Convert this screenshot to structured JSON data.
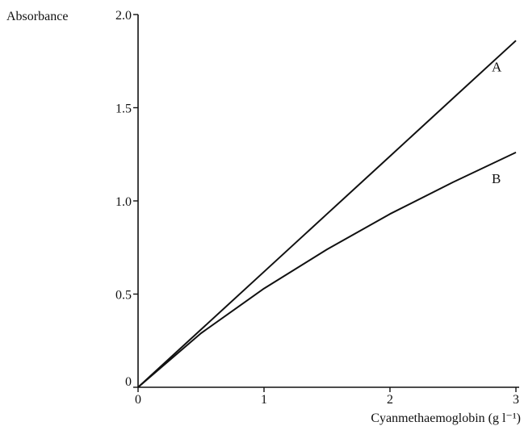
{
  "chart_data": {
    "type": "line",
    "title": "",
    "xlabel": "Cyanmethaemoglobin (g l⁻¹)",
    "ylabel": "Absorbance",
    "xlim": [
      0,
      3
    ],
    "ylim": [
      0,
      2.0
    ],
    "x_ticks": [
      {
        "value": 0,
        "label": "0"
      },
      {
        "value": 1,
        "label": "1"
      },
      {
        "value": 2,
        "label": "2"
      },
      {
        "value": 3,
        "label": "3"
      }
    ],
    "y_ticks": [
      {
        "value": 0,
        "label": "0"
      },
      {
        "value": 0.5,
        "label": "0.5"
      },
      {
        "value": 1.0,
        "label": "1.0"
      },
      {
        "value": 1.5,
        "label": "1.5"
      },
      {
        "value": 2.0,
        "label": "2.0"
      }
    ],
    "grid": false,
    "line_color": "#111111",
    "series": [
      {
        "name": "A",
        "x": [
          0,
          0.5,
          1,
          1.5,
          2,
          2.5,
          3
        ],
        "y": [
          0,
          0.31,
          0.62,
          0.93,
          1.24,
          1.55,
          1.86
        ]
      },
      {
        "name": "B",
        "x": [
          0,
          0.5,
          1,
          1.5,
          2,
          2.5,
          3
        ],
        "y": [
          0,
          0.29,
          0.53,
          0.74,
          0.93,
          1.1,
          1.26
        ]
      }
    ]
  }
}
